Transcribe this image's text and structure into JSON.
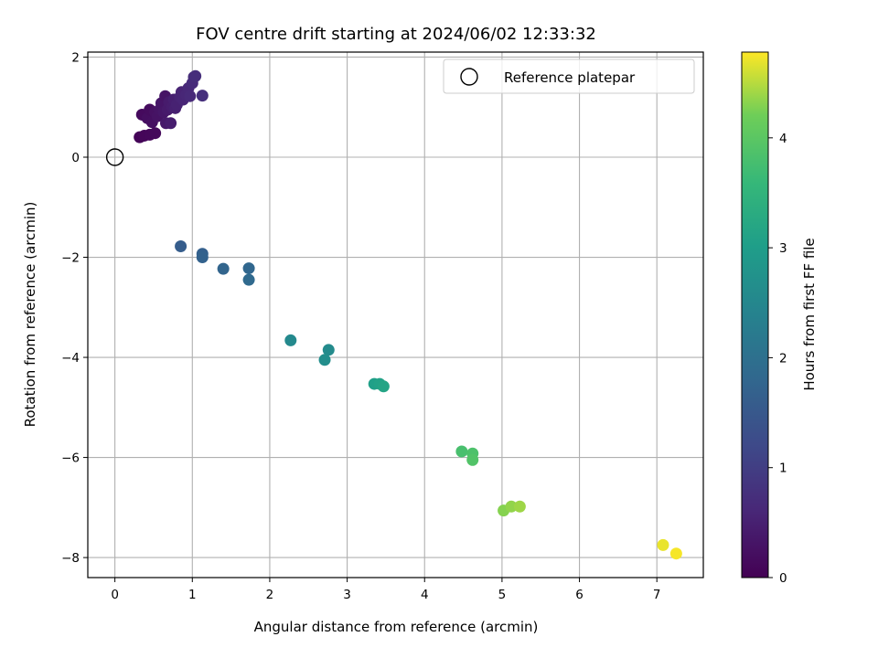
{
  "chart_data": {
    "type": "scatter",
    "title": "FOV centre drift starting at 2024/06/02 12:33:32",
    "xlabel": "Angular distance from reference (arcmin)",
    "ylabel": "Rotation from reference (arcmin)",
    "xlim": [
      -0.35,
      7.6
    ],
    "ylim": [
      -8.4,
      2.1
    ],
    "xticks": [
      0,
      1,
      2,
      3,
      4,
      5,
      6,
      7
    ],
    "yticks": [
      -8,
      -6,
      -4,
      -2,
      0,
      2
    ],
    "xtick_labels": [
      "0",
      "1",
      "2",
      "3",
      "4",
      "5",
      "6",
      "7"
    ],
    "ytick_labels": [
      "−8",
      "−6",
      "−4",
      "−2",
      "0",
      "2"
    ],
    "grid": true,
    "legend": {
      "position": "top-right",
      "entries": [
        "Reference platepar"
      ]
    },
    "reference_point": {
      "x": 0,
      "y": 0,
      "label": "Reference platepar"
    },
    "colorbar": {
      "label": "Hours from first FF file",
      "colormap": "viridis",
      "range": [
        0,
        4.78
      ],
      "ticks": [
        0,
        1,
        2,
        3,
        4
      ],
      "tick_labels": [
        "0",
        "1",
        "2",
        "3",
        "4"
      ]
    },
    "points": [
      {
        "x": 0.32,
        "y": 0.4,
        "c": 0.05
      },
      {
        "x": 0.38,
        "y": 0.43,
        "c": 0.08
      },
      {
        "x": 0.45,
        "y": 0.45,
        "c": 0.1
      },
      {
        "x": 0.52,
        "y": 0.48,
        "c": 0.12
      },
      {
        "x": 0.35,
        "y": 0.85,
        "c": 0.15
      },
      {
        "x": 0.42,
        "y": 0.78,
        "c": 0.2
      },
      {
        "x": 0.45,
        "y": 0.95,
        "c": 0.18
      },
      {
        "x": 0.48,
        "y": 0.7,
        "c": 0.22
      },
      {
        "x": 0.52,
        "y": 0.9,
        "c": 0.25
      },
      {
        "x": 0.55,
        "y": 0.82,
        "c": 0.28
      },
      {
        "x": 0.58,
        "y": 0.95,
        "c": 0.3
      },
      {
        "x": 0.6,
        "y": 1.08,
        "c": 0.32
      },
      {
        "x": 0.63,
        "y": 0.9,
        "c": 0.35
      },
      {
        "x": 0.65,
        "y": 1.22,
        "c": 0.3
      },
      {
        "x": 0.66,
        "y": 0.68,
        "c": 0.38
      },
      {
        "x": 0.68,
        "y": 0.95,
        "c": 0.4
      },
      {
        "x": 0.7,
        "y": 1.1,
        "c": 0.42
      },
      {
        "x": 0.72,
        "y": 0.68,
        "c": 0.45
      },
      {
        "x": 0.74,
        "y": 1.0,
        "c": 0.45
      },
      {
        "x": 0.76,
        "y": 1.15,
        "c": 0.48
      },
      {
        "x": 0.78,
        "y": 0.98,
        "c": 0.5
      },
      {
        "x": 0.8,
        "y": 1.05,
        "c": 0.52
      },
      {
        "x": 0.84,
        "y": 1.2,
        "c": 0.55
      },
      {
        "x": 0.86,
        "y": 1.3,
        "c": 0.55
      },
      {
        "x": 0.88,
        "y": 1.15,
        "c": 0.58
      },
      {
        "x": 0.92,
        "y": 1.25,
        "c": 0.6
      },
      {
        "x": 0.95,
        "y": 1.38,
        "c": 0.62
      },
      {
        "x": 0.97,
        "y": 1.22,
        "c": 0.65
      },
      {
        "x": 1.0,
        "y": 1.48,
        "c": 0.68
      },
      {
        "x": 1.02,
        "y": 1.6,
        "c": 0.7
      },
      {
        "x": 1.04,
        "y": 1.62,
        "c": 0.72
      },
      {
        "x": 1.13,
        "y": 1.23,
        "c": 0.75
      },
      {
        "x": 0.85,
        "y": -1.78,
        "c": 1.6
      },
      {
        "x": 1.13,
        "y": -1.93,
        "c": 1.65
      },
      {
        "x": 1.13,
        "y": -2.0,
        "c": 1.7
      },
      {
        "x": 1.4,
        "y": -2.23,
        "c": 1.75
      },
      {
        "x": 1.73,
        "y": -2.22,
        "c": 1.8
      },
      {
        "x": 1.73,
        "y": -2.45,
        "c": 1.85
      },
      {
        "x": 2.27,
        "y": -3.66,
        "c": 2.55
      },
      {
        "x": 2.76,
        "y": -3.85,
        "c": 2.6
      },
      {
        "x": 2.71,
        "y": -4.05,
        "c": 2.65
      },
      {
        "x": 3.35,
        "y": -4.53,
        "c": 3.05
      },
      {
        "x": 3.42,
        "y": -4.53,
        "c": 3.1
      },
      {
        "x": 3.47,
        "y": -4.58,
        "c": 3.15
      },
      {
        "x": 4.48,
        "y": -5.88,
        "c": 3.8
      },
      {
        "x": 4.62,
        "y": -5.92,
        "c": 3.85
      },
      {
        "x": 4.62,
        "y": -6.05,
        "c": 3.9
      },
      {
        "x": 5.02,
        "y": -7.06,
        "c": 4.3
      },
      {
        "x": 5.12,
        "y": -6.98,
        "c": 4.35
      },
      {
        "x": 5.23,
        "y": -6.98,
        "c": 4.4
      },
      {
        "x": 7.08,
        "y": -7.75,
        "c": 4.7
      },
      {
        "x": 7.25,
        "y": -7.92,
        "c": 4.75
      }
    ]
  }
}
